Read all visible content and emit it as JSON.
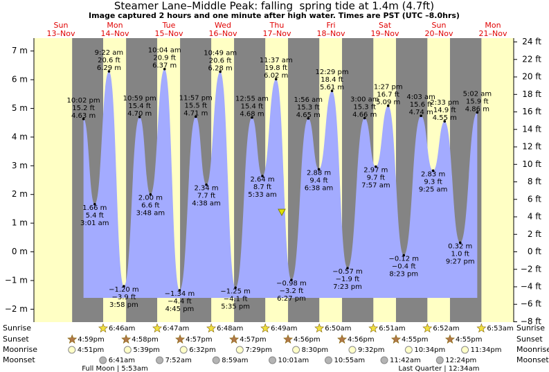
{
  "chart_data": {
    "type": "tide",
    "title": "Steamer Lane–Middle Peak: falling  spring tide at 1.4m (4.7ft)",
    "subtitle": "Image captured 2 hours and one minute after high water. Times are PST (UTC –8.0hrs)",
    "ylim": [
      -2.45,
      7.45
    ],
    "yticks": [
      {
        "value": -2,
        "label": "−2 m"
      },
      {
        "value": -1,
        "label": "−1 m"
      },
      {
        "value": 0,
        "label": "0 m"
      },
      {
        "value": 1,
        "label": "1 m"
      },
      {
        "value": 2,
        "label": "2 m"
      },
      {
        "value": 3,
        "label": "3 m"
      },
      {
        "value": 4,
        "label": "4 m"
      },
      {
        "value": 5,
        "label": "5 m"
      },
      {
        "value": 6,
        "label": "6 m"
      },
      {
        "value": 7,
        "label": "7 m"
      }
    ],
    "y2lim": [
      -8.04,
      24.44
    ],
    "y2ticks": [
      {
        "value": -8,
        "label": "−8 ft"
      },
      {
        "value": -6,
        "label": "−6 ft"
      },
      {
        "value": -4,
        "label": "−4 ft"
      },
      {
        "value": -2,
        "label": "−2 ft"
      },
      {
        "value": 0,
        "label": "0 ft"
      },
      {
        "value": 2,
        "label": "2 ft"
      },
      {
        "value": 4,
        "label": "4 ft"
      },
      {
        "value": 6,
        "label": "6 ft"
      },
      {
        "value": 8,
        "label": "8 ft"
      },
      {
        "value": 10,
        "label": "10 ft"
      },
      {
        "value": 12,
        "label": "12 ft"
      },
      {
        "value": 14,
        "label": "14 ft"
      },
      {
        "value": 16,
        "label": "16 ft"
      },
      {
        "value": 18,
        "label": "18 ft"
      },
      {
        "value": 20,
        "label": "20 ft"
      },
      {
        "value": 22,
        "label": "22 ft"
      },
      {
        "value": 24,
        "label": "24 ft"
      }
    ],
    "colors": {
      "day": "#ffffc4",
      "night": "#848484",
      "water": "#a3abff",
      "date": "#e00000"
    },
    "row_labels": {
      "sunrise": "Sunrise",
      "sunset": "Sunset",
      "moonrise": "Moonrise",
      "moonset": "Moonset"
    },
    "days": [
      {
        "weekday": "Sun",
        "date": "13–Nov",
        "sunset": "4:59pm",
        "moonrise": "4:51pm",
        "tides": [
          {
            "time": "10:02 pm",
            "height": 4.63,
            "value_labels": [
              "4.63 m",
              "15.2 ft"
            ]
          }
        ]
      },
      {
        "weekday": "Mon",
        "date": "14–Nov",
        "sunrise": "6:46am",
        "sunset": "4:58pm",
        "moonrise": "5:39pm",
        "moonset": "6:41am",
        "note": "Full Moon | 5:53am",
        "tides": [
          {
            "time": "3:01 am",
            "height": 1.66,
            "value_labels": [
              "1.66 m",
              "5.4 ft"
            ]
          },
          {
            "time": "9:22 am",
            "height": 6.29,
            "value_labels": [
              "6.29 m",
              "20.6 ft"
            ]
          },
          {
            "time": "3:58 pm",
            "height": -1.2,
            "value_labels": [
              "−1.20 m",
              "−3.9 ft"
            ]
          },
          {
            "time": "10:59 pm",
            "height": 4.7,
            "value_labels": [
              "4.70 m",
              "15.4 ft"
            ]
          }
        ]
      },
      {
        "weekday": "Tue",
        "date": "15–Nov",
        "sunrise": "6:47am",
        "sunset": "4:57pm",
        "moonrise": "6:32pm",
        "moonset": "7:52am",
        "tides": [
          {
            "time": "3:48 am",
            "height": 2.0,
            "value_labels": [
              "2.00 m",
              "6.6 ft"
            ]
          },
          {
            "time": "10:04 am",
            "height": 6.37,
            "value_labels": [
              "6.37 m",
              "20.9 ft"
            ]
          },
          {
            "time": "4:45 pm",
            "height": -1.34,
            "value_labels": [
              "−1.34 m",
              "−4.4 ft"
            ]
          },
          {
            "time": "11:57 pm",
            "height": 4.71,
            "value_labels": [
              "4.71 m",
              "15.5 ft"
            ]
          }
        ]
      },
      {
        "weekday": "Wed",
        "date": "16–Nov",
        "sunrise": "6:48am",
        "sunset": "4:57pm",
        "moonrise": "7:29pm",
        "moonset": "8:59am",
        "tides": [
          {
            "time": "4:38 am",
            "height": 2.34,
            "value_labels": [
              "2.34 m",
              "7.7 ft"
            ]
          },
          {
            "time": "10:49 am",
            "height": 6.28,
            "value_labels": [
              "6.28 m",
              "20.6 ft"
            ]
          },
          {
            "time": "5:35 pm",
            "height": -1.25,
            "value_labels": [
              "−1.25 m",
              "−4.1 ft"
            ]
          }
        ]
      },
      {
        "weekday": "Thu",
        "date": "17–Nov",
        "sunrise": "6:49am",
        "sunset": "4:56pm",
        "moonrise": "8:30pm",
        "moonset": "10:01am",
        "tides": [
          {
            "time": "12:55 am",
            "height": 4.68,
            "value_labels": [
              "4.68 m",
              "15.4 ft"
            ]
          },
          {
            "time": "5:33 am",
            "height": 2.64,
            "value_labels": [
              "2.64 m",
              "8.7 ft"
            ]
          },
          {
            "time": "11:37 am",
            "height": 6.02,
            "value_labels": [
              "6.02 m",
              "19.8 ft"
            ]
          },
          {
            "time": "6:27 pm",
            "height": -0.98,
            "value_labels": [
              "−0.98 m",
              "−3.2 ft"
            ]
          }
        ]
      },
      {
        "weekday": "Fri",
        "date": "18–Nov",
        "sunrise": "6:50am",
        "sunset": "4:56pm",
        "moonrise": "9:32pm",
        "moonset": "10:55am",
        "tides": [
          {
            "time": "1:56 am",
            "height": 4.65,
            "value_labels": [
              "4.65 m",
              "15.3 ft"
            ]
          },
          {
            "time": "6:38 am",
            "height": 2.88,
            "value_labels": [
              "2.88 m",
              "9.4 ft"
            ]
          },
          {
            "time": "12:29 pm",
            "height": 5.61,
            "value_labels": [
              "5.61 m",
              "18.4 ft"
            ]
          },
          {
            "time": "7:23 pm",
            "height": -0.57,
            "value_labels": [
              "−0.57 m",
              "−1.9 ft"
            ]
          }
        ]
      },
      {
        "weekday": "Sat",
        "date": "19–Nov",
        "sunrise": "6:51am",
        "sunset": "4:55pm",
        "moonrise": "10:34pm",
        "moonset": "11:42am",
        "tides": [
          {
            "time": "3:00 am",
            "height": 4.66,
            "value_labels": [
              "4.66 m",
              "15.3 ft"
            ]
          },
          {
            "time": "7:57 am",
            "height": 2.97,
            "value_labels": [
              "2.97 m",
              "9.7 ft"
            ]
          },
          {
            "time": "1:27 pm",
            "height": 5.09,
            "value_labels": [
              "5.09 m",
              "16.7 ft"
            ]
          },
          {
            "time": "8:23 pm",
            "height": -0.12,
            "value_labels": [
              "−0.12 m",
              "−0.4 ft"
            ]
          }
        ]
      },
      {
        "weekday": "Sun",
        "date": "20–Nov",
        "sunrise": "6:52am",
        "sunset": "4:55pm",
        "moonrise": "11:34pm",
        "moonset": "12:24pm",
        "note": "Last Quarter | 12:34am",
        "tides": [
          {
            "time": "4:03 am",
            "height": 4.74,
            "value_labels": [
              "4.74 m",
              "15.6 ft"
            ]
          },
          {
            "time": "9:25 am",
            "height": 2.83,
            "value_labels": [
              "2.83 m",
              "9.3 ft"
            ]
          },
          {
            "time": "2:33 pm",
            "height": 4.55,
            "value_labels": [
              "4.55 m",
              "14.9 ft"
            ]
          },
          {
            "time": "9:27 pm",
            "height": 0.32,
            "value_labels": [
              "0.32 m",
              "1.0 ft"
            ]
          }
        ]
      },
      {
        "weekday": "Mon",
        "date": "21–Nov",
        "sunrise": "6:53am",
        "tides": [
          {
            "time": "5:02 am",
            "height": 4.86,
            "value_labels": [
              "4.86 m",
              "15.9 ft"
            ]
          }
        ]
      }
    ]
  }
}
